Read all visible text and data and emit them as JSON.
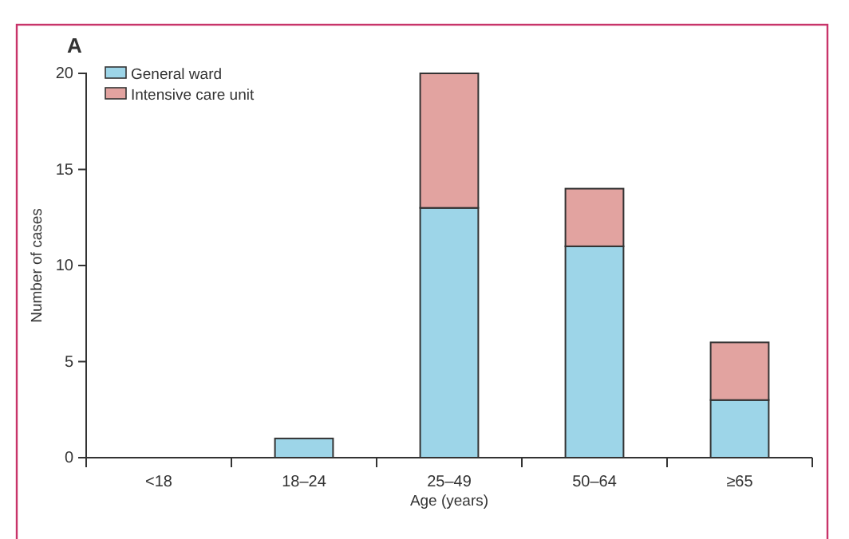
{
  "chart_data": {
    "type": "bar",
    "title": "A",
    "xlabel": "Age (years)",
    "ylabel": "Number of cases",
    "categories": [
      "<18",
      "18–24",
      "25–49",
      "50–64",
      "≥65"
    ],
    "series": [
      {
        "name": "General ward",
        "color": "#9dd5e8",
        "values": [
          0,
          1,
          13,
          11,
          3
        ]
      },
      {
        "name": "Intensive care unit",
        "color": "#e2a3a0",
        "values": [
          0,
          0,
          7,
          3,
          3
        ]
      }
    ],
    "stacked": true,
    "ylim": [
      0,
      20
    ],
    "yticks": [
      0,
      5,
      10,
      15,
      20
    ],
    "grid": false,
    "legend": "top left"
  }
}
